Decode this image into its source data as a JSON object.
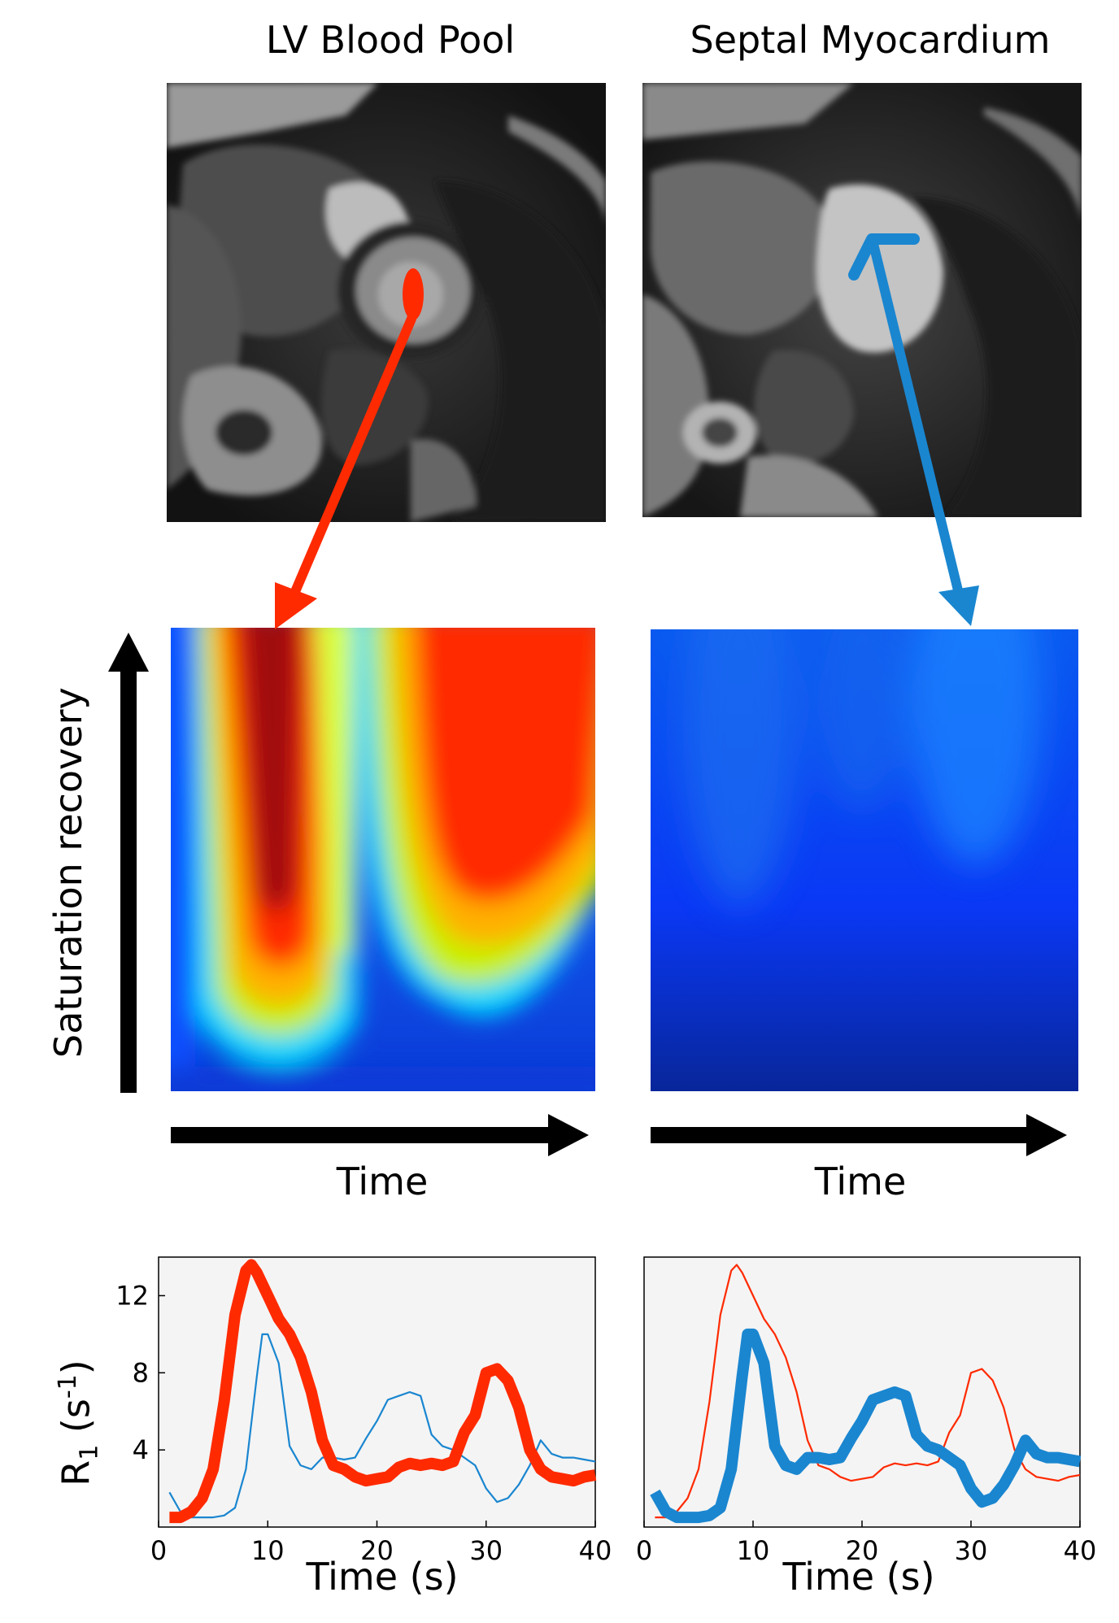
{
  "titles": {
    "left": "LV Blood Pool",
    "right": "Septal Myocardium"
  },
  "heatmaps": {
    "yaxis_label": "Saturation recovery",
    "xaxis_label_left": "Time",
    "xaxis_label_right": "Time"
  },
  "colors": {
    "blood_pool": "#ff2a00",
    "myocardium": "#1a86d0",
    "panel_bg": "#f4f4f4"
  },
  "chart_data": [
    {
      "type": "line",
      "panel": "left",
      "xlabel": "Time (s)",
      "ylabel_main": "R",
      "ylabel_sub": "1",
      "ylabel_rest": " (s",
      "ylabel_sup": "-1",
      "ylabel_close": ")",
      "xlim": [
        0,
        40
      ],
      "ylim": [
        0,
        14
      ],
      "xticks": [
        0,
        10,
        20,
        30,
        40
      ],
      "yticks": [
        4,
        8,
        12
      ],
      "series": [
        {
          "role": "blood",
          "emphasis": "thick",
          "x": [
            1,
            2,
            3,
            4,
            5,
            6,
            7,
            8,
            8.5,
            9,
            10,
            11,
            12,
            13,
            14,
            15,
            16,
            17,
            18,
            19,
            20,
            21,
            22,
            23,
            24,
            25,
            26,
            27,
            28,
            29,
            30,
            31,
            32,
            33,
            34,
            35,
            36,
            37,
            38,
            39,
            40
          ],
          "y": [
            0.5,
            0.5,
            0.8,
            1.5,
            3.0,
            6.5,
            11.0,
            13.3,
            13.6,
            13.2,
            12.0,
            10.8,
            10.0,
            8.8,
            7.0,
            4.5,
            3.2,
            3.0,
            2.6,
            2.4,
            2.5,
            2.6,
            3.1,
            3.3,
            3.2,
            3.3,
            3.2,
            3.4,
            4.9,
            5.8,
            8.0,
            8.2,
            7.6,
            6.2,
            4.0,
            3.0,
            2.6,
            2.5,
            2.4,
            2.6,
            2.7
          ]
        },
        {
          "role": "myocardium",
          "emphasis": "thin",
          "x": [
            1,
            2,
            3,
            4,
            5,
            6,
            7,
            8,
            9,
            9.5,
            10,
            11,
            12,
            13,
            14,
            15,
            16,
            17,
            18,
            19,
            20,
            21,
            22,
            23,
            24,
            25,
            26,
            27,
            28,
            29,
            30,
            31,
            32,
            33,
            34,
            35,
            36,
            37,
            38,
            39,
            40
          ],
          "y": [
            1.8,
            0.8,
            0.5,
            0.5,
            0.5,
            0.6,
            1.0,
            3.0,
            7.8,
            10.0,
            10.0,
            8.5,
            4.2,
            3.2,
            3.0,
            3.6,
            3.6,
            3.5,
            3.6,
            4.6,
            5.5,
            6.6,
            6.8,
            7.0,
            6.8,
            4.8,
            4.2,
            4.0,
            3.6,
            3.2,
            2.0,
            1.3,
            1.5,
            2.2,
            3.2,
            4.5,
            3.8,
            3.6,
            3.6,
            3.5,
            3.4
          ]
        }
      ]
    },
    {
      "type": "line",
      "panel": "right",
      "xlabel": "Time (s)",
      "xlim": [
        0,
        40
      ],
      "ylim": [
        0,
        14
      ],
      "xticks": [
        0,
        10,
        20,
        30,
        40
      ],
      "series": [
        {
          "role": "blood",
          "emphasis": "thin",
          "x": [
            1,
            2,
            3,
            4,
            5,
            6,
            7,
            8,
            8.5,
            9,
            10,
            11,
            12,
            13,
            14,
            15,
            16,
            17,
            18,
            19,
            20,
            21,
            22,
            23,
            24,
            25,
            26,
            27,
            28,
            29,
            30,
            31,
            32,
            33,
            34,
            35,
            36,
            37,
            38,
            39,
            40
          ],
          "y": [
            0.5,
            0.5,
            0.8,
            1.5,
            3.0,
            6.5,
            11.0,
            13.3,
            13.6,
            13.2,
            12.0,
            10.8,
            10.0,
            8.8,
            7.0,
            4.5,
            3.2,
            3.0,
            2.6,
            2.4,
            2.5,
            2.6,
            3.1,
            3.3,
            3.2,
            3.3,
            3.2,
            3.4,
            4.9,
            5.8,
            8.0,
            8.2,
            7.6,
            6.2,
            4.0,
            3.0,
            2.6,
            2.5,
            2.4,
            2.6,
            2.7
          ]
        },
        {
          "role": "myocardium",
          "emphasis": "thick",
          "x": [
            1,
            2,
            3,
            4,
            5,
            6,
            7,
            8,
            9,
            9.5,
            10,
            11,
            12,
            13,
            14,
            15,
            16,
            17,
            18,
            19,
            20,
            21,
            22,
            23,
            24,
            25,
            26,
            27,
            28,
            29,
            30,
            31,
            32,
            33,
            34,
            35,
            36,
            37,
            38,
            39,
            40
          ],
          "y": [
            1.8,
            0.8,
            0.5,
            0.5,
            0.5,
            0.6,
            1.0,
            3.0,
            7.8,
            10.0,
            10.0,
            8.5,
            4.2,
            3.2,
            3.0,
            3.6,
            3.6,
            3.5,
            3.6,
            4.6,
            5.5,
            6.6,
            6.8,
            7.0,
            6.8,
            4.8,
            4.2,
            4.0,
            3.6,
            3.2,
            2.0,
            1.3,
            1.5,
            2.2,
            3.2,
            4.5,
            3.8,
            3.6,
            3.6,
            3.5,
            3.4
          ]
        }
      ]
    }
  ]
}
